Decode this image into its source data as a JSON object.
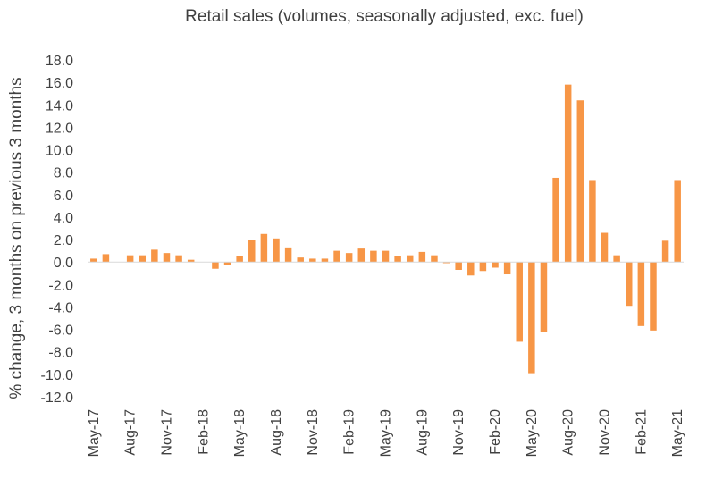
{
  "chart_data": {
    "type": "bar",
    "title": "Retail sales (volumes, seasonally adjusted, exc. fuel)",
    "ylabel": "% change, 3 months on previous 3 months",
    "xlabel": "",
    "ylim": [
      -12,
      18
    ],
    "yticks": [
      "18.0",
      "16.0",
      "14.0",
      "12.0",
      "10.0",
      "8.0",
      "6.0",
      "4.0",
      "2.0",
      "0.0",
      "-2.0",
      "-4.0",
      "-6.0",
      "-8.0",
      "-10.0",
      "-12.0"
    ],
    "xtick_labels": [
      "May-17",
      "Aug-17",
      "Nov-17",
      "Feb-18",
      "May-18",
      "Aug-18",
      "Nov-18",
      "Feb-19",
      "May-19",
      "Aug-19",
      "Nov-19",
      "Feb-20",
      "May-20",
      "Aug-20",
      "Nov-20",
      "Feb-21",
      "May-21"
    ],
    "color": "#f79646",
    "grid": false,
    "legend": "none",
    "categories": [
      "May-17",
      "Jun-17",
      "Jul-17",
      "Aug-17",
      "Sep-17",
      "Oct-17",
      "Nov-17",
      "Dec-17",
      "Jan-18",
      "Feb-18",
      "Mar-18",
      "Apr-18",
      "May-18",
      "Jun-18",
      "Jul-18",
      "Aug-18",
      "Sep-18",
      "Oct-18",
      "Nov-18",
      "Dec-18",
      "Jan-19",
      "Feb-19",
      "Mar-19",
      "Apr-19",
      "May-19",
      "Jun-19",
      "Jul-19",
      "Aug-19",
      "Sep-19",
      "Oct-19",
      "Nov-19",
      "Dec-19",
      "Jan-20",
      "Feb-20",
      "Mar-20",
      "Apr-20",
      "May-20",
      "Jun-20",
      "Jul-20",
      "Aug-20",
      "Sep-20",
      "Oct-20",
      "Nov-20",
      "Dec-20",
      "Jan-21",
      "Feb-21",
      "Mar-21",
      "Apr-21",
      "May-21"
    ],
    "values": [
      0.3,
      0.7,
      0.0,
      0.6,
      0.6,
      1.1,
      0.8,
      0.6,
      0.2,
      0.0,
      -0.6,
      -0.3,
      0.5,
      2.0,
      2.5,
      2.1,
      1.3,
      0.4,
      0.3,
      0.3,
      1.0,
      0.8,
      1.2,
      1.0,
      1.0,
      0.5,
      0.6,
      0.9,
      0.6,
      -0.1,
      -0.7,
      -1.2,
      -0.8,
      -0.5,
      -1.1,
      -7.1,
      -9.9,
      -6.2,
      7.5,
      15.8,
      14.4,
      7.3,
      2.6,
      0.6,
      -3.9,
      -5.7,
      -6.1,
      1.9,
      7.3
    ]
  }
}
